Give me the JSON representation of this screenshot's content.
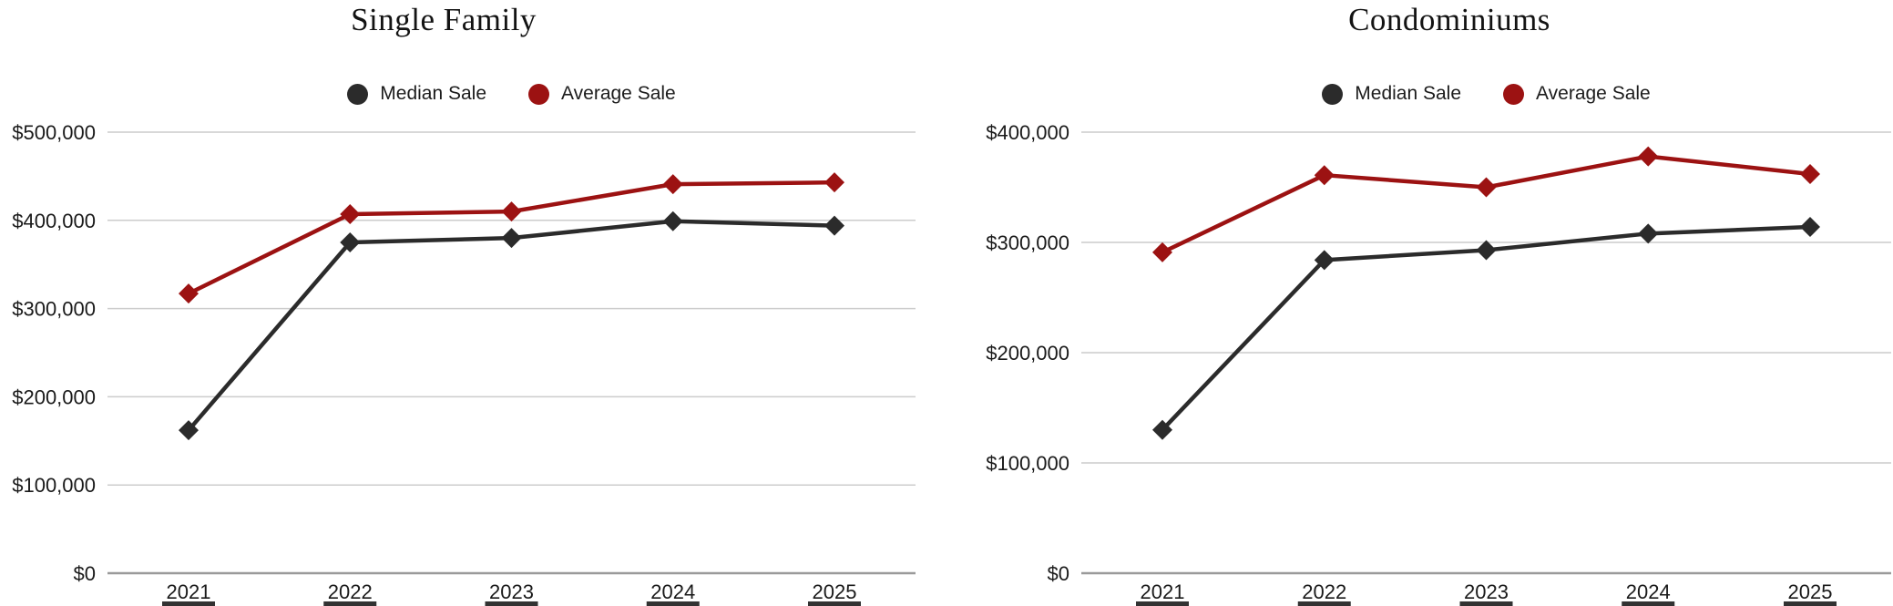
{
  "colors": {
    "background": "#ffffff",
    "gridline": "#cccccc",
    "axis_line": "#9a9a9a",
    "text": "#1a1a1a",
    "median_series": "#2b2b2b",
    "average_series": "#9c1212",
    "clipped_bar": "#323232"
  },
  "chart_data": [
    {
      "type": "line",
      "title": "Single Family",
      "categories": [
        "2021",
        "2022",
        "2023",
        "2024",
        "2025"
      ],
      "series": [
        {
          "name": "Median Sale",
          "color": "#2b2b2b",
          "values": [
            162000,
            375000,
            380000,
            399000,
            394000
          ]
        },
        {
          "name": "Average Sale",
          "color": "#9c1212",
          "values": [
            317000,
            407000,
            410000,
            441000,
            443000
          ]
        }
      ],
      "xlabel": "",
      "ylabel": "",
      "ylim": [
        0,
        500000
      ],
      "ytick_step": 100000,
      "ytick_labels": [
        "$0",
        "$100,000",
        "$200,000",
        "$300,000",
        "$400,000",
        "$500,000"
      ],
      "grid": true,
      "legend_position": "top",
      "marker": "diamond"
    },
    {
      "type": "line",
      "title": "Condominiums",
      "categories": [
        "2021",
        "2022",
        "2023",
        "2024",
        "2025"
      ],
      "series": [
        {
          "name": "Median Sale",
          "color": "#2b2b2b",
          "values": [
            130000,
            284000,
            293000,
            308000,
            314000
          ]
        },
        {
          "name": "Average Sale",
          "color": "#9c1212",
          "values": [
            291000,
            361000,
            350000,
            378000,
            362000
          ]
        }
      ],
      "xlabel": "",
      "ylabel": "",
      "ylim": [
        0,
        400000
      ],
      "ytick_step": 100000,
      "ytick_labels": [
        "$0",
        "$100,000",
        "$200,000",
        "$300,000",
        "$400,000"
      ],
      "grid": true,
      "legend_position": "top",
      "marker": "diamond"
    }
  ]
}
